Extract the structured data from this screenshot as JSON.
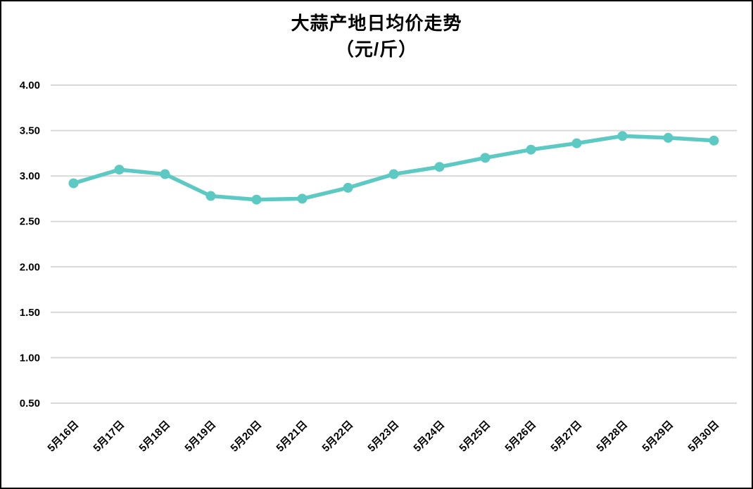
{
  "chart_data": {
    "type": "line",
    "title": "大蒜产地日均价走势",
    "subtitle": "（元/斤）",
    "categories": [
      "5月16日",
      "5月17日",
      "5月18日",
      "5月19日",
      "5月20日",
      "5月21日",
      "5月22日",
      "5月23日",
      "5月24日",
      "5月25日",
      "5月26日",
      "5月27日",
      "5月28日",
      "5月29日",
      "5月30日"
    ],
    "values": [
      2.92,
      3.07,
      3.02,
      2.78,
      2.74,
      2.75,
      2.87,
      3.02,
      3.1,
      3.2,
      3.29,
      3.36,
      3.44,
      3.42,
      3.39
    ],
    "xlabel": "",
    "ylabel": "",
    "ylim": [
      0.5,
      4.0
    ],
    "ytick_labels": [
      "4.00",
      "3.50",
      "3.00",
      "2.50",
      "2.00",
      "1.50",
      "1.00",
      "0.50"
    ],
    "grid": true,
    "legend": false,
    "line_color": "#5DC9C3",
    "grid_color": "#D9D9D9",
    "text_color": "#000000"
  }
}
